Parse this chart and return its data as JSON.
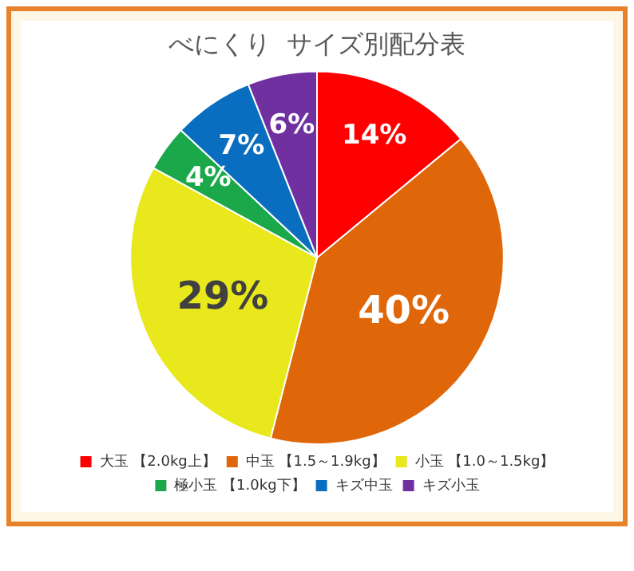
{
  "chart_data": {
    "type": "pie",
    "title": "べにくり  サイズ別配分表",
    "categories": [
      "大玉 【2.0kg上】",
      "中玉 【1.5～1.9kg】",
      "小玉 【1.0～1.5kg】",
      "極小玉 【1.0kg下】",
      "キズ中玉",
      "キズ小玉"
    ],
    "values": [
      14,
      40,
      29,
      4,
      7,
      6
    ],
    "colors": [
      "#ff0000",
      "#e0660a",
      "#e8e81c",
      "#1aa84a",
      "#0a6ec0",
      "#7030a0"
    ],
    "value_labels": [
      "14%",
      "40%",
      "29%",
      "4%",
      "7%",
      "6%"
    ],
    "legend": "bottom"
  }
}
